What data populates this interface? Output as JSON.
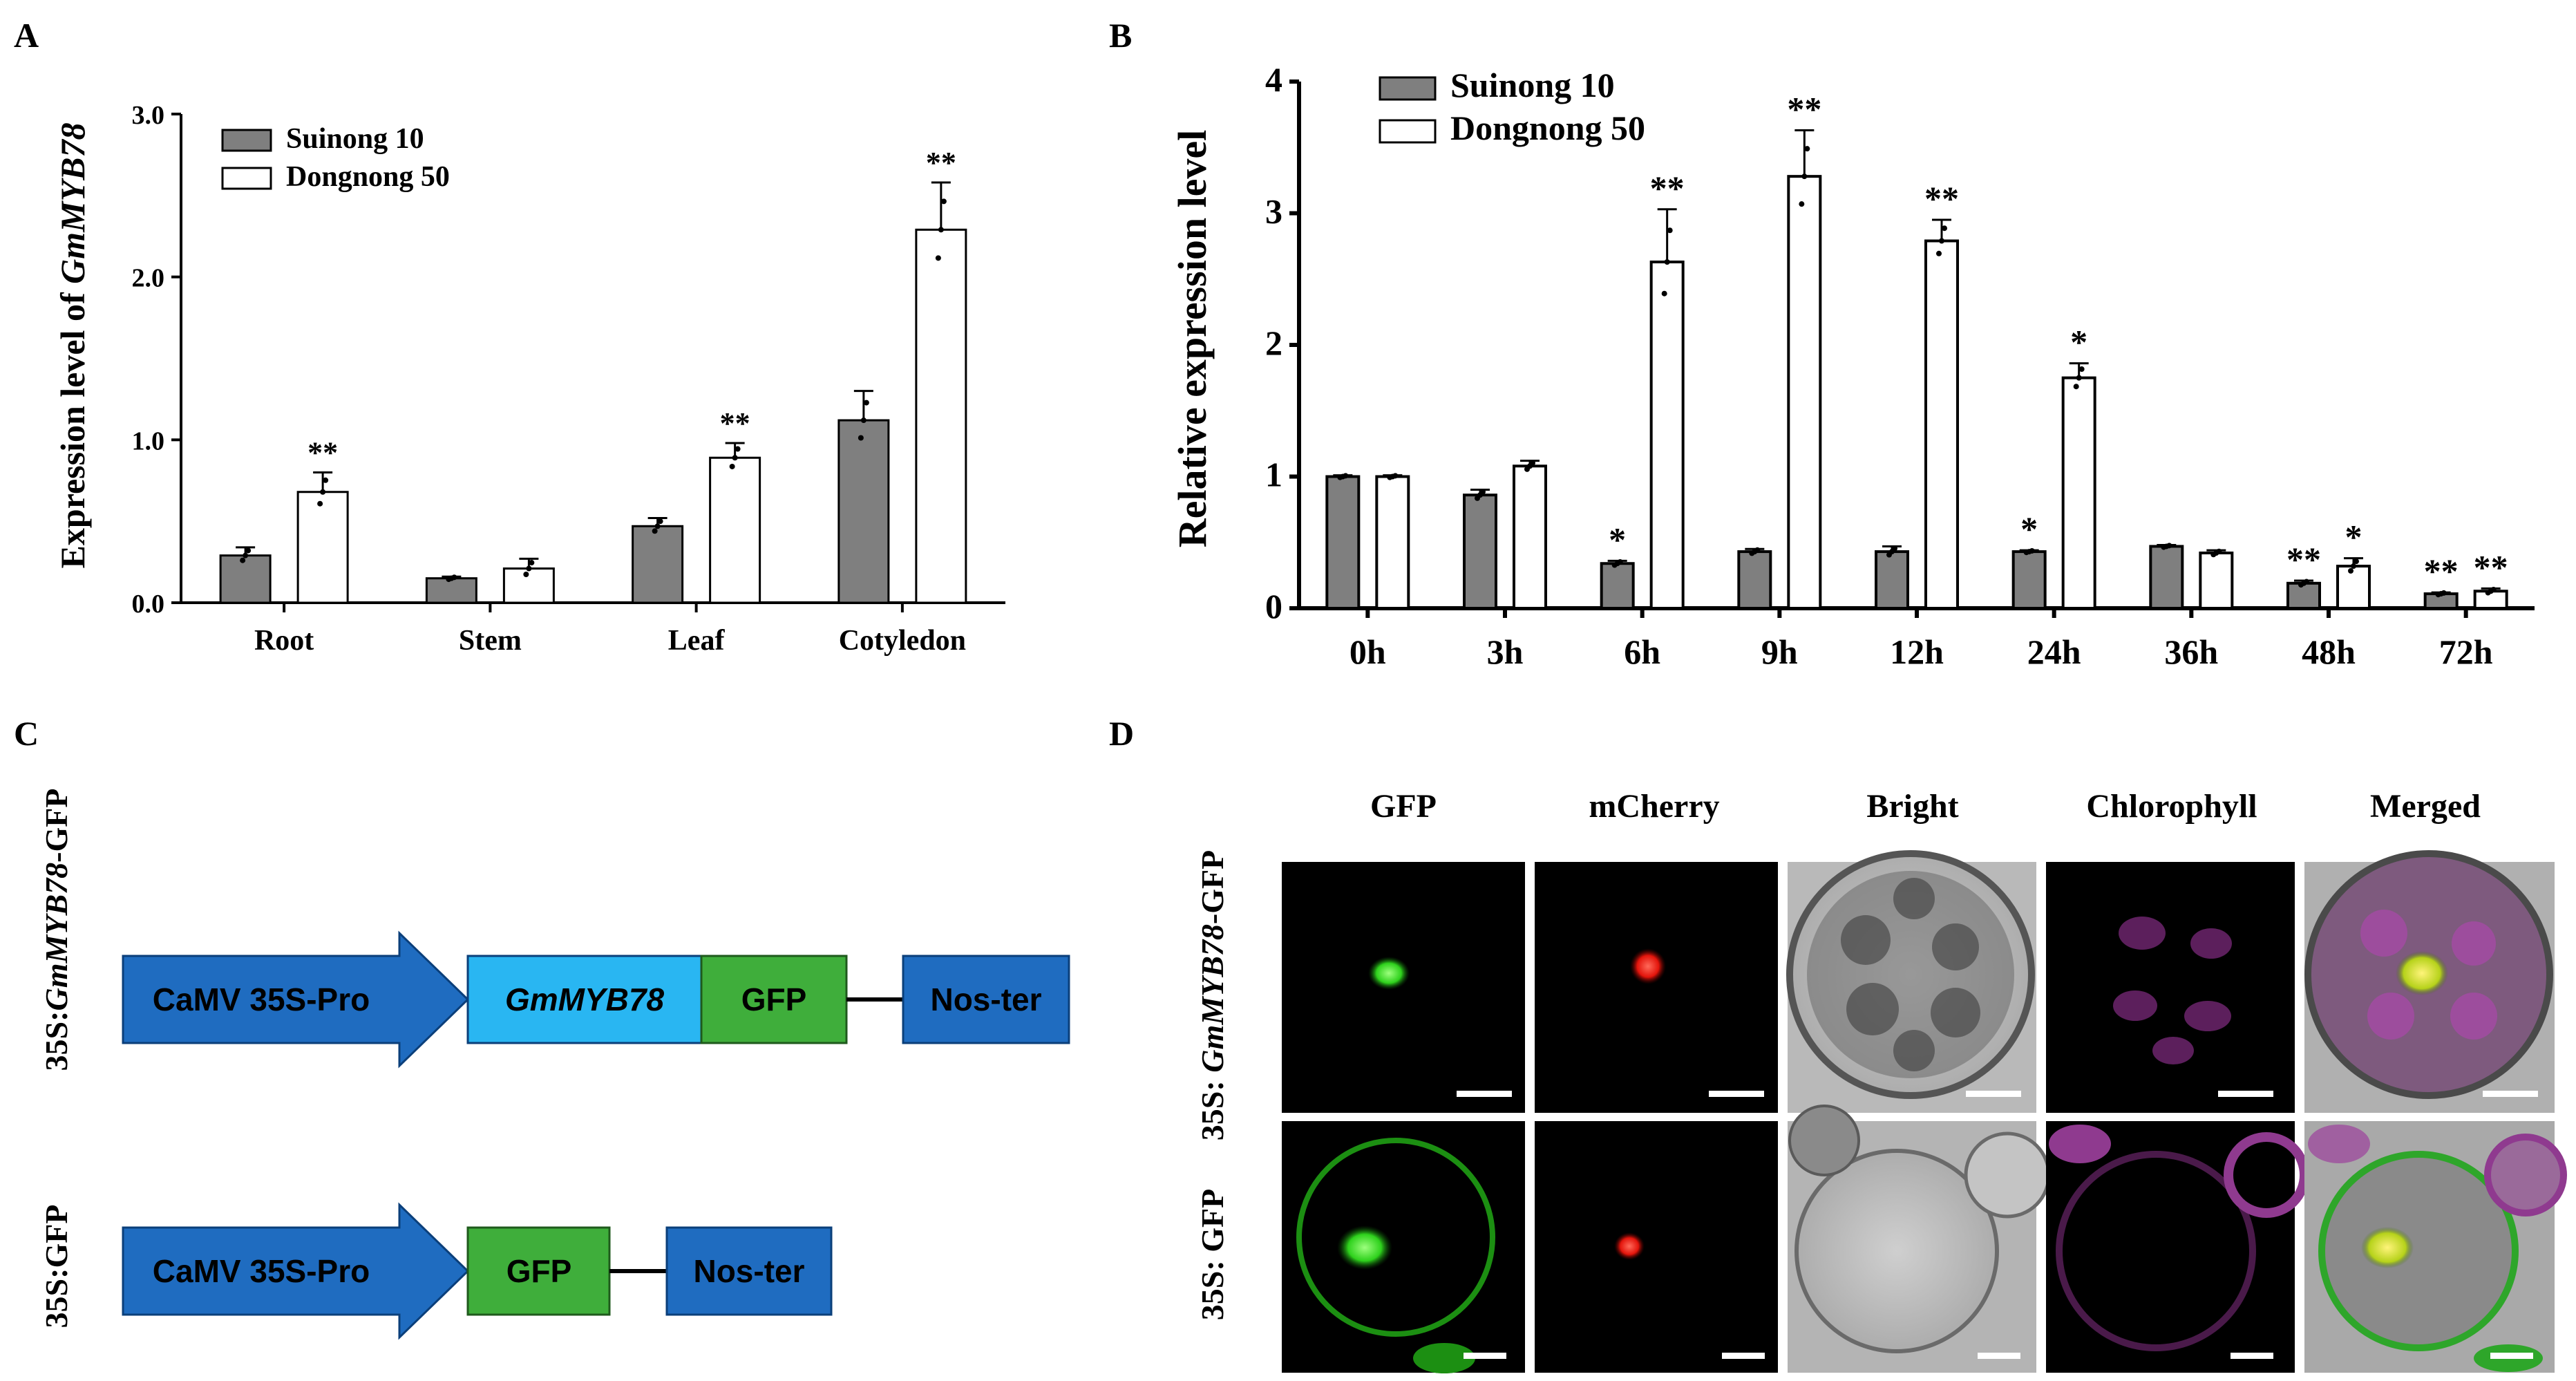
{
  "panels": {
    "A": "A",
    "B": "B",
    "C": "C",
    "D": "D"
  },
  "colors": {
    "sui": "#7f7f7f",
    "dong": "#ffffff",
    "promoter": "#1f6cc0",
    "gene": "#29b6f2",
    "gfp": "#3fae3b",
    "nos": "#1f6cc0"
  },
  "chart_data": [
    {
      "type": "bar",
      "panel": "A",
      "categories": [
        "Root",
        "Stem",
        "Leaf",
        "Cotyledon"
      ],
      "ylabel_prefix": "Expression level of ",
      "ylabel_gene": "GmMYB78",
      "ylim": [
        0,
        3.0
      ],
      "yticks": [
        "0.0",
        "1.0",
        "2.0",
        "3.0"
      ],
      "grid": false,
      "legend": "top-left",
      "series": [
        {
          "name": "Suinong 10",
          "values": [
            0.29,
            0.15,
            0.47,
            1.12
          ],
          "errors": [
            0.05,
            0.01,
            0.05,
            0.18
          ],
          "sig": [
            "",
            "",
            "",
            ""
          ]
        },
        {
          "name": "Dongnong 50",
          "values": [
            0.68,
            0.21,
            0.89,
            2.29
          ],
          "errors": [
            0.12,
            0.06,
            0.09,
            0.29
          ],
          "sig": [
            "**",
            "",
            "**",
            "**"
          ]
        }
      ]
    },
    {
      "type": "bar",
      "panel": "B",
      "categories": [
        "0h",
        "3h",
        "6h",
        "9h",
        "12h",
        "24h",
        "36h",
        "48h",
        "72h"
      ],
      "ylabel": "Relative expression level",
      "ylim": [
        0,
        4
      ],
      "yticks": [
        "0",
        "1",
        "2",
        "3",
        "4"
      ],
      "grid": false,
      "legend": "top-left",
      "series": [
        {
          "name": "Suinong 10",
          "values": [
            1.0,
            0.86,
            0.34,
            0.43,
            0.43,
            0.43,
            0.47,
            0.19,
            0.11
          ],
          "errors": [
            0.01,
            0.04,
            0.02,
            0.02,
            0.04,
            0.01,
            0.01,
            0.02,
            0.01
          ],
          "sig": [
            "",
            "",
            "*",
            "",
            "",
            "*",
            "",
            "**",
            "**"
          ]
        },
        {
          "name": "Dongnong 50",
          "values": [
            1.0,
            1.08,
            2.63,
            3.28,
            2.79,
            1.75,
            0.42,
            0.32,
            0.13
          ],
          "errors": [
            0.01,
            0.04,
            0.4,
            0.35,
            0.16,
            0.11,
            0.02,
            0.06,
            0.02
          ],
          "sig": [
            "",
            "",
            "**",
            "**",
            "**",
            "*",
            "",
            "*",
            "**"
          ]
        }
      ]
    }
  ],
  "panel_c": {
    "row1_label_pre": "35S:",
    "row1_label_gene": "GmMYB78",
    "row1_label_post": "-GFP",
    "row2_label": "35S:GFP",
    "promoter": "CaMV 35S-Pro",
    "gene": "GmMYB78",
    "gfp": "GFP",
    "terminator": "Nos-ter"
  },
  "panel_d": {
    "columns": [
      "GFP",
      "mCherry",
      "Bright",
      "Chlorophyll",
      "Merged"
    ],
    "row1_label_pre": "35S: ",
    "row1_label_gene": "GmMYB78",
    "row1_label_post": "-GFP",
    "row2_label": "35S: GFP"
  }
}
